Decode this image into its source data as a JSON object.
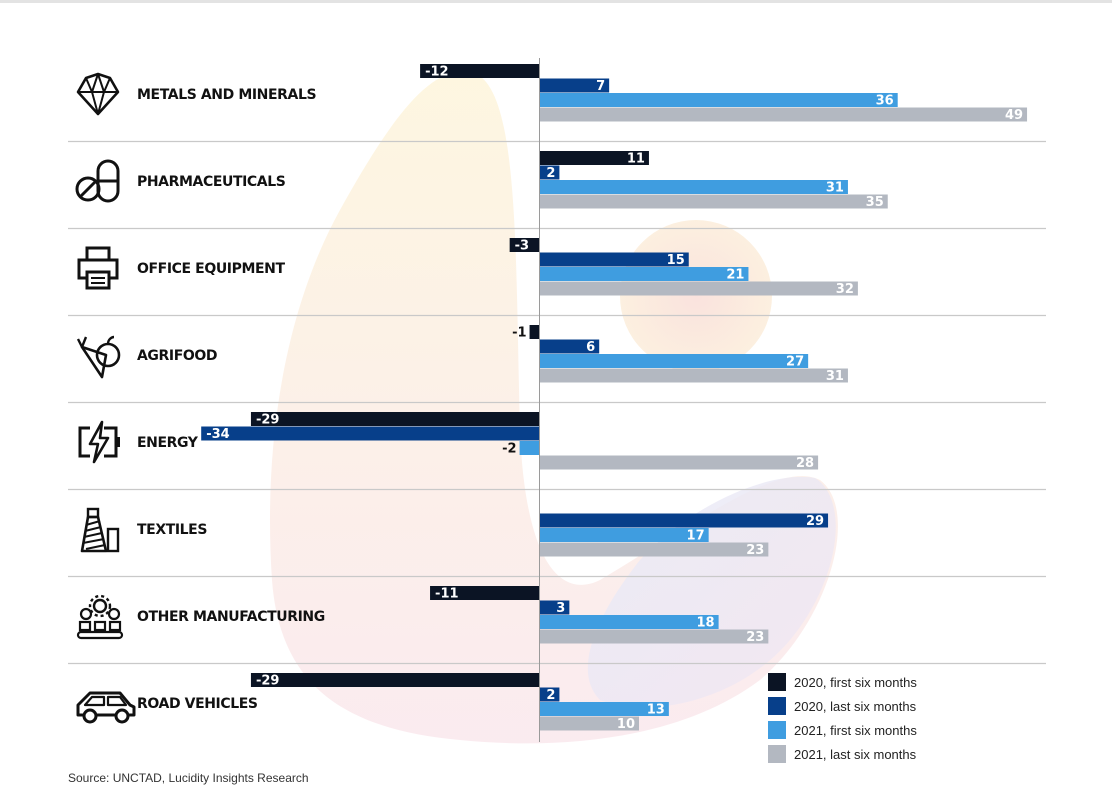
{
  "chart_data": {
    "type": "bar",
    "orientation": "horizontal",
    "categories": [
      "METALS AND MINERALS",
      "PHARMACEUTICALS",
      "OFFICE EQUIPMENT",
      "AGRIFOOD",
      "ENERGY",
      "TEXTILES",
      "OTHER MANUFACTURING",
      "ROAD VEHICLES"
    ],
    "category_icons": [
      "diamond-icon",
      "pill-icon",
      "printer-icon",
      "fruit-vegetable-icon",
      "battery-bolt-icon",
      "thread-spool-icon",
      "gear-conveyor-icon",
      "car-icon"
    ],
    "series": [
      {
        "name": "2020, first six months",
        "color": "#0b1424",
        "values": [
          -12,
          11,
          -3,
          -1,
          -29,
          null,
          -11,
          -29
        ],
        "labels": [
          "-12",
          "11",
          "-3",
          "-1",
          "-29",
          "",
          "-11",
          "-29"
        ]
      },
      {
        "name": "2020, last six months",
        "color": "#073f8a",
        "values": [
          7,
          2,
          15,
          6,
          -34,
          29,
          3,
          2
        ],
        "labels": [
          "7",
          "2",
          "15",
          "6",
          "-34",
          "29",
          "3",
          "2"
        ]
      },
      {
        "name": "2021, first six months",
        "color": "#3f9de0",
        "values": [
          36,
          31,
          21,
          27,
          -2,
          17,
          18,
          13
        ],
        "labels": [
          "36",
          "31",
          "21",
          "27",
          "-2",
          "17",
          "18",
          "13"
        ]
      },
      {
        "name": "2021, last six months",
        "color": "#b3b8c1",
        "values": [
          49,
          35,
          32,
          31,
          28,
          23,
          23,
          10
        ],
        "labels": [
          "49",
          "35",
          "32",
          "31",
          "28",
          "23",
          "23",
          "10"
        ]
      }
    ],
    "legend_position": "bottom-right",
    "grid": false
  },
  "source": "Source: UNCTAD, Lucidity Insights Research"
}
